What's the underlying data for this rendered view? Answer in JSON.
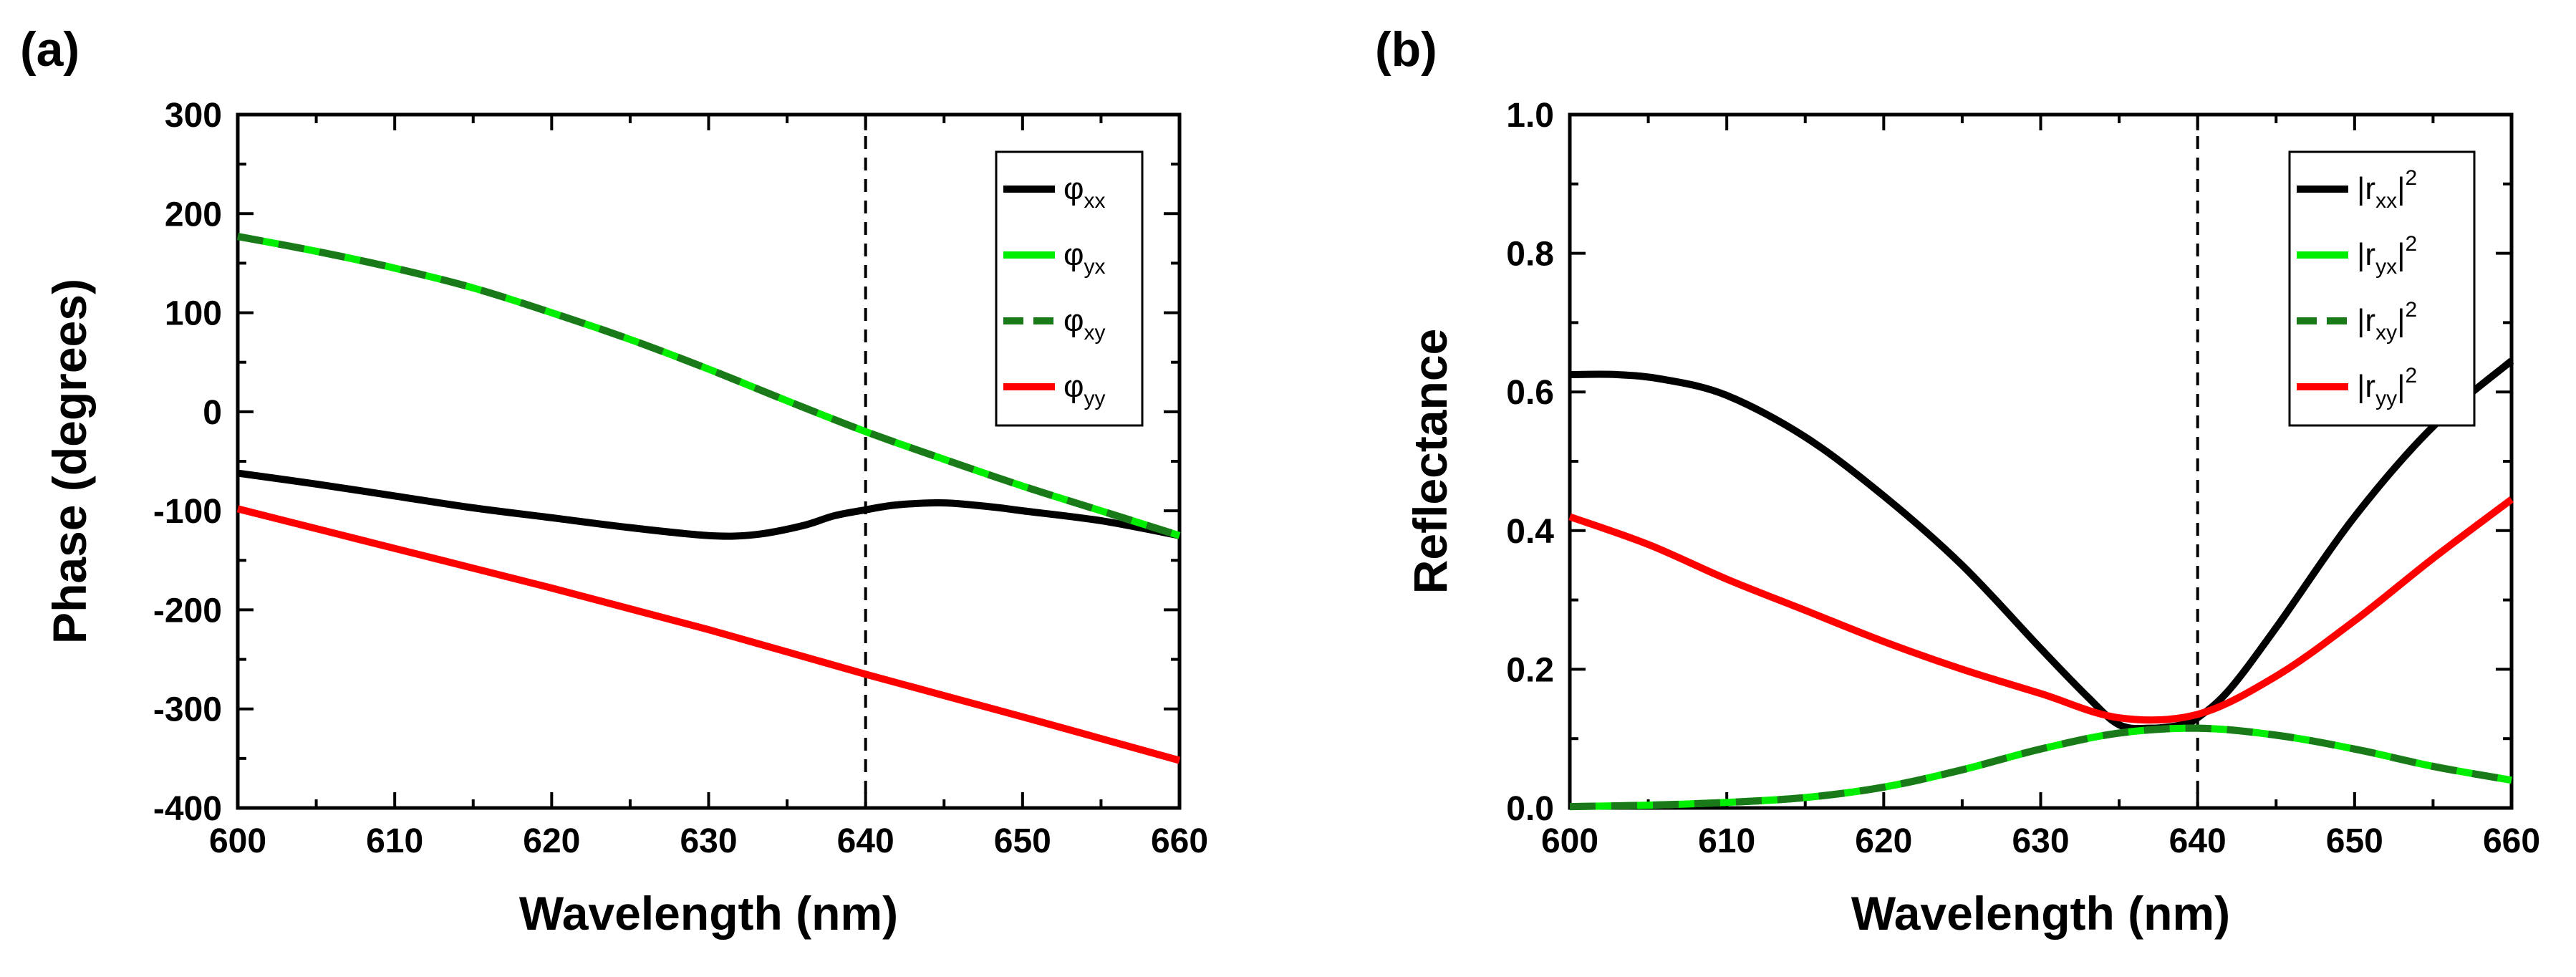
{
  "panels": [
    {
      "label": "(a)"
    },
    {
      "label": "(b)"
    }
  ],
  "chart_data": [
    {
      "type": "line",
      "panel": "(a)",
      "xlabel": "Wavelength (nm)",
      "ylabel": "Phase (degrees)",
      "xlim": [
        600,
        660
      ],
      "ylim": [
        -400,
        300
      ],
      "xticks": [
        600,
        610,
        620,
        630,
        640,
        650,
        660
      ],
      "yticks": [
        -400,
        -300,
        -200,
        -100,
        0,
        100,
        200,
        300
      ],
      "vline": 640,
      "legend_position": "top-right",
      "series": [
        {
          "name": "φxx",
          "base": "φ",
          "sub": "xx",
          "sup": "",
          "color": "#000000",
          "dash": false,
          "x": [
            600,
            605,
            610,
            615,
            620,
            625,
            630,
            633,
            636,
            638,
            640,
            642,
            645,
            648,
            650,
            655,
            660
          ],
          "y": [
            -62,
            -73,
            -85,
            -97,
            -107,
            -117,
            -125,
            -124,
            -115,
            -105,
            -99,
            -94,
            -92,
            -96,
            -100,
            -110,
            -125
          ]
        },
        {
          "name": "φyx",
          "base": "φ",
          "sub": "yx",
          "sup": "",
          "color": "#00ee00",
          "dash": false,
          "x": [
            600,
            605,
            610,
            615,
            620,
            625,
            630,
            635,
            640,
            645,
            650,
            655,
            660
          ],
          "y": [
            177,
            162,
            145,
            125,
            100,
            73,
            43,
            11,
            -20,
            -48,
            -75,
            -100,
            -125
          ]
        },
        {
          "name": "φxy",
          "base": "φ",
          "sub": "xy",
          "sup": "",
          "color": "#1a7a1a",
          "dash": true,
          "x": [
            600,
            605,
            610,
            615,
            620,
            625,
            630,
            635,
            640,
            645,
            650,
            655,
            660
          ],
          "y": [
            177,
            162,
            145,
            125,
            100,
            73,
            43,
            11,
            -20,
            -48,
            -75,
            -100,
            -125
          ]
        },
        {
          "name": "φyy",
          "base": "φ",
          "sub": "yy",
          "sup": "",
          "color": "#ff0000",
          "dash": false,
          "x": [
            600,
            610,
            620,
            630,
            640,
            650,
            660
          ],
          "y": [
            -98,
            -138,
            -178,
            -220,
            -265,
            -308,
            -352
          ]
        }
      ]
    },
    {
      "type": "line",
      "panel": "(b)",
      "xlabel": "Wavelength (nm)",
      "ylabel": "Reflectance",
      "xlim": [
        600,
        660
      ],
      "ylim": [
        0,
        1.0
      ],
      "xticks": [
        600,
        610,
        620,
        630,
        640,
        650,
        660
      ],
      "yticks": [
        0.0,
        0.2,
        0.4,
        0.6,
        0.8,
        1.0
      ],
      "vline": 640,
      "legend_position": "top-right",
      "series": [
        {
          "name": "|rxx|2",
          "base": "|r",
          "sub": "xx",
          "sup": "2",
          "color": "#000000",
          "dash": false,
          "x": [
            600,
            603,
            606,
            610,
            615,
            620,
            625,
            630,
            633,
            635,
            637,
            639,
            640,
            642,
            645,
            650,
            655,
            660
          ],
          "y": [
            0.625,
            0.625,
            0.618,
            0.595,
            0.535,
            0.45,
            0.35,
            0.23,
            0.16,
            0.12,
            0.115,
            0.12,
            0.13,
            0.17,
            0.26,
            0.42,
            0.55,
            0.645
          ]
        },
        {
          "name": "|ryx|2",
          "base": "|r",
          "sub": "yx",
          "sup": "2",
          "color": "#00ee00",
          "dash": false,
          "x": [
            600,
            605,
            610,
            615,
            620,
            625,
            630,
            635,
            640,
            645,
            650,
            655,
            660
          ],
          "y": [
            0.002,
            0.004,
            0.008,
            0.015,
            0.03,
            0.055,
            0.085,
            0.108,
            0.115,
            0.105,
            0.085,
            0.06,
            0.04
          ]
        },
        {
          "name": "|rxy|2",
          "base": "|r",
          "sub": "xy",
          "sup": "2",
          "color": "#1a7a1a",
          "dash": true,
          "x": [
            600,
            605,
            610,
            615,
            620,
            625,
            630,
            635,
            640,
            645,
            650,
            655,
            660
          ],
          "y": [
            0.002,
            0.004,
            0.008,
            0.015,
            0.03,
            0.055,
            0.085,
            0.108,
            0.115,
            0.105,
            0.085,
            0.06,
            0.04
          ]
        },
        {
          "name": "|ryy|2",
          "base": "|r",
          "sub": "yy",
          "sup": "2",
          "color": "#ff0000",
          "dash": false,
          "x": [
            600,
            605,
            610,
            615,
            620,
            625,
            630,
            635,
            640,
            645,
            650,
            655,
            660
          ],
          "y": [
            0.42,
            0.38,
            0.33,
            0.285,
            0.24,
            0.2,
            0.165,
            0.13,
            0.135,
            0.19,
            0.27,
            0.36,
            0.445
          ]
        }
      ]
    }
  ]
}
